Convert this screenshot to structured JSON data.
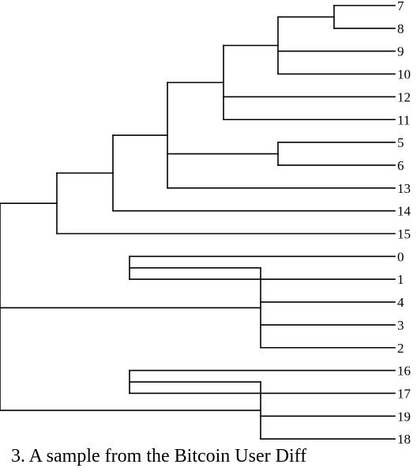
{
  "leaves": [
    "7",
    "8",
    "9",
    "10",
    "12",
    "11",
    "5",
    "6",
    "13",
    "14",
    "15",
    "0",
    "1",
    "4",
    "3",
    "2",
    "16",
    "17",
    "19",
    "18"
  ],
  "caption": "3. A sample from the Bitcoin User Diff",
  "tree": {
    "children": [
      {
        "children": [
          {
            "children": [
              {
                "children": [
                  {
                    "children": [
                      {
                        "children": [
                          {
                            "children": [
                              {
                                "leaf": "7"
                              },
                              {
                                "leaf": "8"
                              }
                            ]
                          },
                          {
                            "leaf": "9"
                          },
                          {
                            "leaf": "10"
                          }
                        ]
                      },
                      {
                        "leaf": "12"
                      },
                      {
                        "leaf": "11"
                      }
                    ]
                  },
                  {
                    "children": [
                      {
                        "leaf": "5"
                      },
                      {
                        "leaf": "6"
                      }
                    ]
                  },
                  {
                    "leaf": "13"
                  }
                ]
              },
              {
                "leaf": "14"
              }
            ]
          },
          {
            "leaf": "15"
          }
        ]
      },
      {
        "children": [
          {
            "children": [
              {
                "leaf": "0"
              },
              {
                "leaf": "1"
              }
            ]
          },
          {
            "leaf": "4"
          },
          {
            "leaf": "3"
          },
          {
            "leaf": "2"
          }
        ]
      },
      {
        "children": [
          {
            "children": [
              {
                "leaf": "16"
              },
              {
                "leaf": "17"
              }
            ]
          },
          {
            "leaf": "19"
          },
          {
            "leaf": "18"
          }
        ]
      }
    ]
  }
}
